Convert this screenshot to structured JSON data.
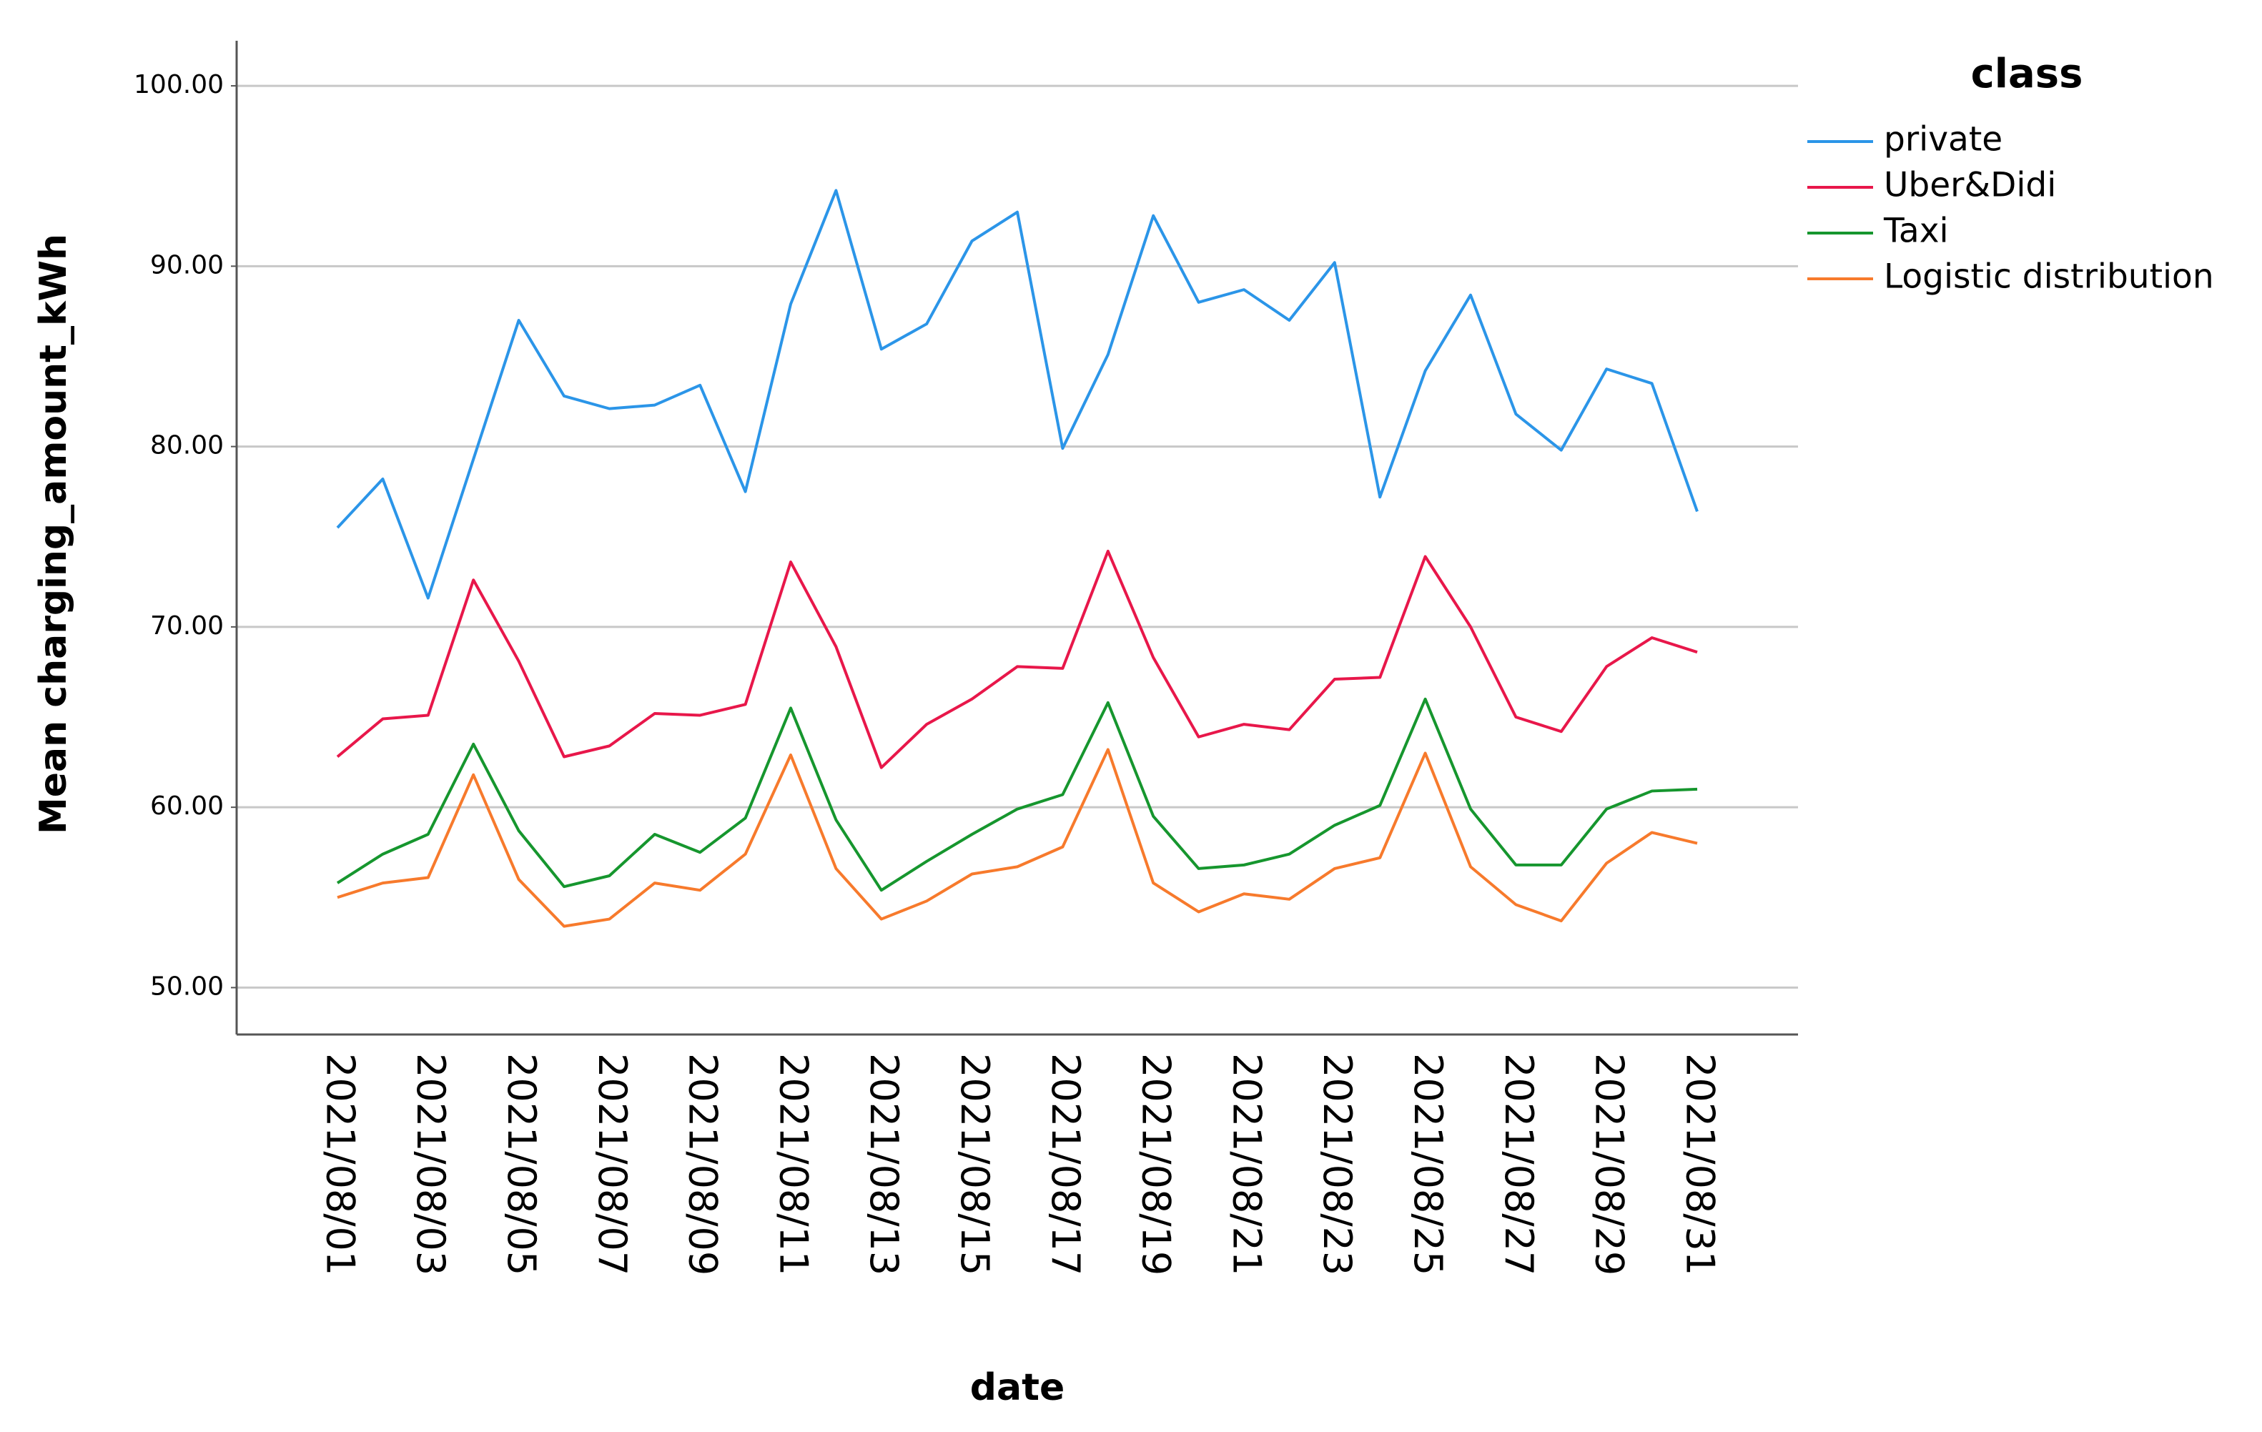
{
  "chart_data": {
    "type": "line",
    "x_label": "date",
    "y_label": "Mean charging_amount_kWh",
    "legend_title": "class",
    "legend_position": "right",
    "grid": true,
    "categories": [
      "2021/08/01",
      null,
      "2021/08/03",
      null,
      "2021/08/05",
      null,
      "2021/08/07",
      null,
      "2021/08/09",
      null,
      "2021/08/11",
      null,
      "2021/08/13",
      null,
      "2021/08/15",
      null,
      "2021/08/17",
      null,
      "2021/08/19",
      null,
      "2021/08/21",
      null,
      "2021/08/23",
      null,
      "2021/08/25",
      null,
      "2021/08/27",
      null,
      "2021/08/29",
      null,
      "2021/08/31"
    ],
    "ylim": [
      47.4,
      102.5
    ],
    "yticks": [
      {
        "value": 50,
        "label": "50.00"
      },
      {
        "value": 60,
        "label": "60.00"
      },
      {
        "value": 70,
        "label": "70.00"
      },
      {
        "value": 80,
        "label": "80.00"
      },
      {
        "value": 90,
        "label": "90.00"
      },
      {
        "value": 100,
        "label": "100.00"
      }
    ],
    "series": [
      {
        "name": "private",
        "color": "#2b95e8",
        "values": [
          75.5,
          78.2,
          71.6,
          79.3,
          87.0,
          82.8,
          82.1,
          82.3,
          83.4,
          77.5,
          87.9,
          94.2,
          85.4,
          86.8,
          91.4,
          93.0,
          79.9,
          85.1,
          92.8,
          88.0,
          88.7,
          87.0,
          90.2,
          77.2,
          84.2,
          88.4,
          81.8,
          79.8,
          84.3,
          83.5,
          76.4
        ]
      },
      {
        "name": "Uber&Didi",
        "color": "#e8174a",
        "values": [
          62.8,
          64.9,
          65.1,
          72.6,
          68.1,
          62.8,
          63.4,
          65.2,
          65.1,
          65.7,
          73.6,
          68.9,
          62.2,
          64.6,
          66.0,
          67.8,
          67.7,
          74.2,
          68.3,
          63.9,
          64.6,
          64.3,
          67.1,
          67.2,
          73.9,
          70.0,
          65.0,
          64.2,
          67.8,
          69.4,
          68.6
        ]
      },
      {
        "name": "Taxi",
        "color": "#16962e",
        "values": [
          55.8,
          57.4,
          58.5,
          63.5,
          58.7,
          55.6,
          56.2,
          58.5,
          57.5,
          59.4,
          65.5,
          59.3,
          55.4,
          57.0,
          58.5,
          59.9,
          60.7,
          65.8,
          59.5,
          56.6,
          56.8,
          57.4,
          59.0,
          60.1,
          66.0,
          59.9,
          56.8,
          56.8,
          59.9,
          60.9,
          61.0
        ]
      },
      {
        "name": "Logistic distribution",
        "color": "#f77a2c",
        "values": [
          55.0,
          55.8,
          56.1,
          61.8,
          56.0,
          53.4,
          53.8,
          55.8,
          55.4,
          57.4,
          62.9,
          56.6,
          53.8,
          54.8,
          56.3,
          56.7,
          57.8,
          63.2,
          55.8,
          54.2,
          55.2,
          54.9,
          56.6,
          57.2,
          63.0,
          56.7,
          54.6,
          53.7,
          56.9,
          58.6,
          58.0
        ]
      }
    ]
  }
}
